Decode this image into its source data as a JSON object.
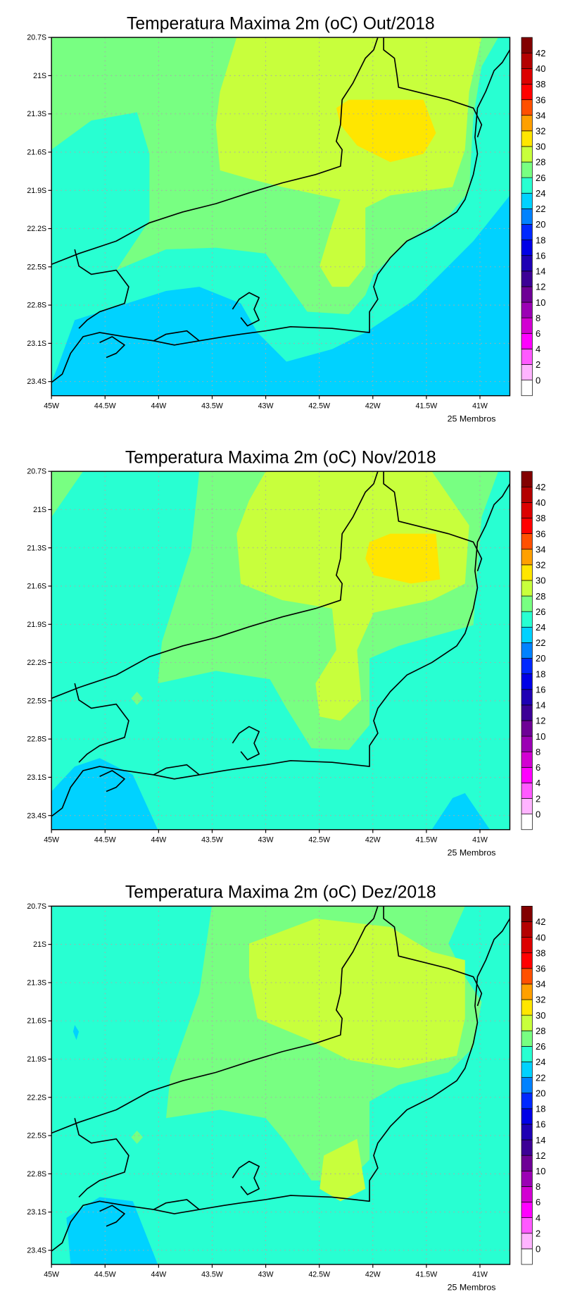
{
  "panels": [
    {
      "title": "Temperatura Maxima 2m (oC) Out/2018",
      "footnote": "25 Membros"
    },
    {
      "title": "Temperatura Maxima 2m (oC) Nov/2018",
      "footnote": "25 Membros"
    },
    {
      "title": "Temperatura Maxima 2m (oC) Dez/2018",
      "footnote": "25 Membros"
    }
  ],
  "lon_ticks": [
    "45W",
    "44.5W",
    "44W",
    "43.5W",
    "43W",
    "42.5W",
    "42W",
    "41.5W",
    "41W"
  ],
  "lat_ticks": [
    "20.7S",
    "21S",
    "21.3S",
    "21.6S",
    "21.9S",
    "22.2S",
    "22.5S",
    "22.8S",
    "23.1S",
    "23.4S"
  ],
  "colorbar": {
    "labels": [
      "0",
      "2",
      "4",
      "6",
      "8",
      "10",
      "12",
      "14",
      "16",
      "18",
      "20",
      "22",
      "24",
      "26",
      "28",
      "30",
      "32",
      "34",
      "36",
      "38",
      "40",
      "42"
    ],
    "colors": [
      "#ffffff",
      "#ffb4ff",
      "#ff5aff",
      "#ff00ff",
      "#d200d2",
      "#9b00b4",
      "#6e0096",
      "#3c0096",
      "#1e00b4",
      "#0000e6",
      "#0028ff",
      "#0082ff",
      "#00d2ff",
      "#28ffd2",
      "#78ff82",
      "#c8ff3c",
      "#ffe600",
      "#ffa000",
      "#ff5000",
      "#ff0000",
      "#dc0000",
      "#b40000",
      "#820000"
    ]
  }
}
